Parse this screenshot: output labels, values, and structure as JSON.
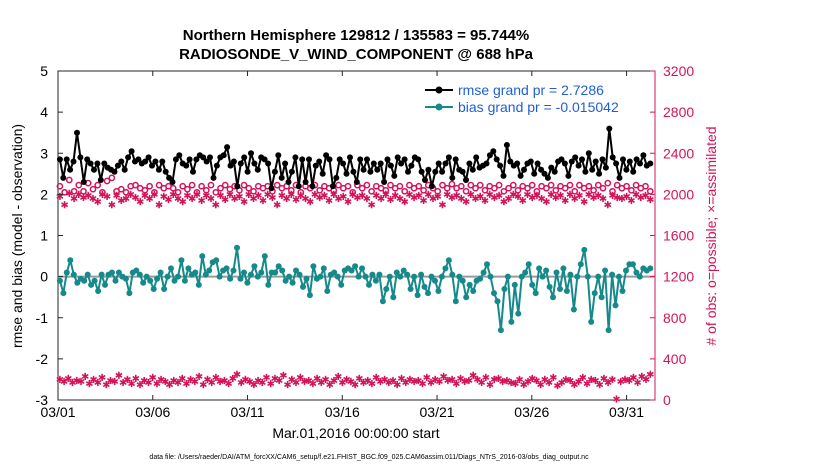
{
  "chart_data": {
    "type": "line",
    "title_line1": "Northern Hemisphere 129812 / 135583 = 95.744%",
    "title_line2": "RADIOSONDE_V_WIND_COMPONENT @ 688 hPa",
    "xlabel": "Mar.01,2016 00:00:00 start",
    "ylabel_left": "rmse and bias (model - observation)",
    "ylabel_right": "# of obs: o=possible; ×=assimilated",
    "footnote": "data file: /Users/raeder/DAI/ATM_forcXX/CAM6_setup/f.e21.FHIST_BGC.f09_025.CAM6assim.011/Diags_NTrS_2016-03/obs_diag_output.nc",
    "x_ticks": [
      0,
      5,
      10,
      15,
      20,
      25,
      30
    ],
    "x_tick_labels": [
      "03/01",
      "03/06",
      "03/11",
      "03/16",
      "03/21",
      "03/26",
      "03/31"
    ],
    "x_range": [
      0,
      31.5
    ],
    "ylim_left": [
      -3,
      5
    ],
    "y_ticks_left": [
      -3,
      -2,
      -1,
      0,
      1,
      2,
      3,
      4,
      5
    ],
    "ylim_right": [
      0,
      3200
    ],
    "y_ticks_right": [
      0,
      400,
      800,
      1200,
      1600,
      2000,
      2400,
      2800,
      3200
    ],
    "colors": {
      "rmse": "#000000",
      "bias": "#168a8a",
      "obs": "#d4145a",
      "legend_text": "#1f5fd6",
      "zero_line": "#9a9a9a"
    },
    "legend": [
      {
        "key": "rmse",
        "label": "rmse grand pr = 2.7286"
      },
      {
        "key": "bias",
        "label": "bias grand pr = -0.015042"
      }
    ],
    "series": [
      {
        "name": "rmse",
        "axis": "left",
        "values": [
          2.85,
          2.4,
          2.85,
          2.6,
          2.8,
          3.5,
          2.9,
          2.3,
          2.85,
          2.75,
          2.6,
          2.75,
          2.35,
          2.75,
          2.65,
          2.6,
          2.55,
          2.7,
          2.8,
          2.6,
          2.9,
          3.05,
          2.8,
          2.85,
          2.75,
          2.8,
          2.9,
          2.7,
          2.8,
          2.6,
          2.8,
          2.55,
          2.4,
          2.3,
          2.85,
          2.95,
          2.75,
          2.7,
          2.85,
          2.55,
          2.85,
          2.95,
          2.9,
          2.8,
          2.9,
          2.4,
          2.7,
          2.9,
          2.95,
          3.15,
          2.7,
          2.8,
          2.2,
          2.75,
          2.9,
          2.55,
          3.0,
          2.75,
          2.6,
          2.9,
          2.85,
          2.75,
          2.15,
          2.55,
          2.95,
          2.4,
          2.75,
          2.3,
          2.55,
          2.9,
          2.2,
          2.85,
          2.3,
          2.85,
          2.2,
          2.7,
          2.8,
          2.5,
          2.95,
          2.85,
          2.2,
          2.4,
          2.85,
          2.75,
          2.5,
          2.9,
          2.55,
          2.3,
          2.85,
          2.6,
          2.85,
          2.55,
          2.75,
          2.6,
          2.75,
          2.3,
          2.85,
          2.7,
          2.45,
          2.9,
          2.75,
          2.85,
          2.55,
          2.7,
          2.9,
          2.85,
          2.55,
          2.35,
          2.6,
          2.2,
          2.55,
          2.75,
          2.55,
          2.75,
          2.9,
          2.4,
          2.85,
          2.6,
          2.55,
          2.35,
          2.75,
          2.6,
          2.9,
          2.65,
          2.7,
          2.75,
          2.95,
          3.05,
          2.85,
          2.7,
          2.45,
          3.2,
          2.8,
          2.7,
          2.75,
          2.45,
          2.6,
          2.75,
          2.8,
          2.5,
          2.75,
          2.6,
          2.5,
          2.4,
          2.65,
          2.55,
          2.8,
          2.85,
          2.75,
          2.45,
          2.8,
          2.9,
          2.7,
          2.85,
          2.55,
          3.0,
          2.6,
          2.8,
          2.5,
          2.85,
          2.65,
          3.6,
          2.9,
          2.75,
          2.4,
          2.85,
          2.6,
          2.8,
          2.55,
          2.85,
          2.75,
          2.95,
          2.7,
          2.75
        ]
      },
      {
        "name": "bias",
        "axis": "left",
        "values": [
          -0.1,
          -0.4,
          0.1,
          0.4,
          0.05,
          -0.15,
          -0.05,
          -0.1,
          0.05,
          -0.2,
          -0.1,
          -0.35,
          0.05,
          -0.2,
          0.05,
          0.1,
          -0.1,
          0.1,
          0.0,
          -0.05,
          -0.4,
          0.1,
          0.15,
          0.05,
          -0.15,
          0.0,
          -0.1,
          -0.3,
          -0.05,
          0.1,
          -0.3,
          0.0,
          0.2,
          -0.1,
          0.0,
          0.4,
          -0.1,
          0.2,
          0.05,
          0.1,
          -0.2,
          0.5,
          0.05,
          0.15,
          0.35,
          0.4,
          0.0,
          0.15,
          0.2,
          -0.05,
          0.15,
          0.7,
          -0.05,
          0.1,
          -0.15,
          0.05,
          0.25,
          0.0,
          0.1,
          0.5,
          -0.2,
          0.1,
          0.1,
          0.25,
          0.15,
          -0.1,
          0.0,
          -0.15,
          0.15,
          0.05,
          -0.25,
          -0.05,
          -0.45,
          0.25,
          -0.05,
          0.0,
          0.2,
          -0.35,
          0.05,
          0.1,
          0.0,
          -0.2,
          0.15,
          0.2,
          0.15,
          0.25,
          0.0,
          0.2,
          0.0,
          -0.2,
          0.05,
          -0.1,
          0.05,
          -0.6,
          -0.3,
          0.0,
          -0.5,
          0.1,
          0.0,
          0.15,
          0.05,
          -0.3,
          0.0,
          -0.45,
          0.05,
          -0.25,
          -0.4,
          0.0,
          -0.1,
          -0.35,
          0.0,
          0.2,
          0.4,
          0.05,
          -0.6,
          0.0,
          -0.1,
          -0.5,
          -0.2,
          -0.35,
          -0.1,
          -0.05,
          0.1,
          0.3,
          0.0,
          -0.4,
          -0.6,
          -1.3,
          -0.3,
          0.0,
          -1.1,
          -0.2,
          -0.9,
          0.0,
          0.1,
          0.3,
          -0.2,
          -0.4,
          0.2,
          0.0,
          0.15,
          -0.25,
          -0.5,
          0.1,
          -0.3,
          0.2,
          -0.35,
          0.05,
          -0.8,
          0.0,
          0.3,
          0.65,
          0.0,
          -1.1,
          -0.4,
          0.0,
          -0.5,
          0.15,
          -1.3,
          0.05,
          -0.7,
          0.0,
          -0.35,
          0.15,
          0.3,
          0.3,
          0.1,
          0.0,
          0.2,
          0.15,
          0.2
        ]
      },
      {
        "name": "obs_possible",
        "axis": "right",
        "values": [
          2080,
          2020,
          2140,
          2030,
          2090,
          2030,
          2110,
          2050,
          2090,
          2020,
          2130,
          2160,
          2030,
          2050,
          2020,
          2080,
          2090,
          2060,
          2040,
          2080,
          2020,
          2090,
          2060,
          2080,
          2060,
          2020,
          2080,
          2050,
          2090,
          2020,
          2080,
          2040,
          2090,
          2020,
          2060,
          2090,
          2050,
          2080,
          2040,
          2090,
          2060,
          2030,
          2080,
          2060,
          2080,
          2030,
          2090,
          2060,
          2080,
          2040,
          2090,
          2020,
          2080,
          2060,
          2090,
          2040,
          2080,
          2060,
          2040,
          2090,
          2060,
          2080,
          2020,
          2090,
          2060,
          2090,
          2030,
          2080,
          2060,
          2040,
          2090,
          2060,
          2080,
          2030,
          2090,
          2060,
          2080,
          2040,
          2090,
          2060,
          2030,
          2090,
          2060,
          2100,
          2060,
          2080,
          2030,
          2090,
          2060,
          2090,
          2040,
          2080,
          2060,
          2090,
          2030,
          2060,
          2090,
          2040,
          2080,
          2060,
          2090,
          2030,
          2080,
          2060,
          2090,
          2040,
          2080,
          2060,
          2090,
          2030,
          2090,
          2060,
          2080,
          2040,
          2090,
          2060,
          2110,
          2030,
          2090,
          2060,
          2080,
          2040,
          2090,
          2060,
          2080,
          2030
        ]
      },
      {
        "name": "obs_assimilated",
        "axis": "right",
        "values": [
          1980,
          1900,
          2010,
          1960,
          2000,
          1970,
          1990,
          1960,
          1930,
          2000,
          1980,
          1900,
          1990,
          1940,
          1960,
          2000,
          1970,
          1930,
          1990,
          1960,
          2000,
          1900,
          1980,
          1950,
          2000,
          1960,
          1930,
          1990,
          1960,
          2000,
          1940,
          1990,
          1960,
          1900,
          1990,
          1950,
          2000,
          1960,
          1980,
          1930,
          2000,
          1960,
          1990,
          1940,
          2000,
          1970,
          1900,
          1990,
          1960,
          2000,
          1950,
          1990,
          1960,
          1930,
          2000,
          1970,
          1990,
          1940,
          2000,
          1960,
          1980,
          1930,
          2000,
          1970,
          1990,
          1960,
          1900,
          1990,
          1960,
          2000,
          1950,
          1990,
          1960,
          1930,
          2000,
          1970,
          1990,
          1940,
          2000,
          1960,
          1980,
          1900,
          2000,
          1970,
          1990,
          1960,
          1930,
          2000,
          1960,
          1980,
          1940,
          2000,
          1970,
          1990,
          1930,
          1960,
          2000,
          1980,
          1940,
          2000,
          1970,
          1990,
          1960,
          1930,
          2000,
          1970,
          1990,
          1940,
          2000,
          1960,
          1990,
          1930,
          2000,
          1970,
          1990,
          1960,
          1900,
          1990,
          1970,
          1960,
          1980,
          1940,
          2000,
          1970,
          1990,
          1950
        ]
      },
      {
        "name": "obs_floor",
        "axis": "right",
        "values": [
          200,
          180,
          210,
          170,
          190,
          180,
          230,
          160,
          200,
          170,
          220,
          150,
          190,
          180,
          240,
          170,
          200,
          160,
          210,
          150,
          190,
          170,
          220,
          160,
          200,
          180,
          150,
          190,
          170,
          210,
          160,
          200,
          180,
          230,
          150,
          200,
          170,
          220,
          180,
          190,
          160,
          210,
          250,
          170,
          200,
          180,
          150,
          190,
          170,
          220,
          160,
          210,
          190,
          240,
          150,
          200,
          170,
          220,
          180,
          190,
          160,
          210,
          170,
          200,
          150,
          190,
          230,
          170,
          200,
          180,
          150,
          210,
          170,
          190,
          160,
          220,
          180,
          200,
          170,
          190,
          150,
          210,
          170,
          200,
          180,
          190,
          160,
          220,
          170,
          200,
          180,
          230,
          190,
          200,
          160,
          210,
          180,
          190,
          240,
          200,
          170,
          220,
          150,
          200,
          210,
          180,
          190,
          170,
          160,
          200,
          150,
          180,
          210,
          190,
          150,
          200,
          170,
          220,
          140,
          170,
          200,
          190,
          150,
          180,
          220,
          160,
          200,
          190,
          150,
          210,
          170,
          200,
          10,
          180,
          200,
          190,
          220,
          170,
          230,
          200,
          250
        ]
      }
    ]
  }
}
